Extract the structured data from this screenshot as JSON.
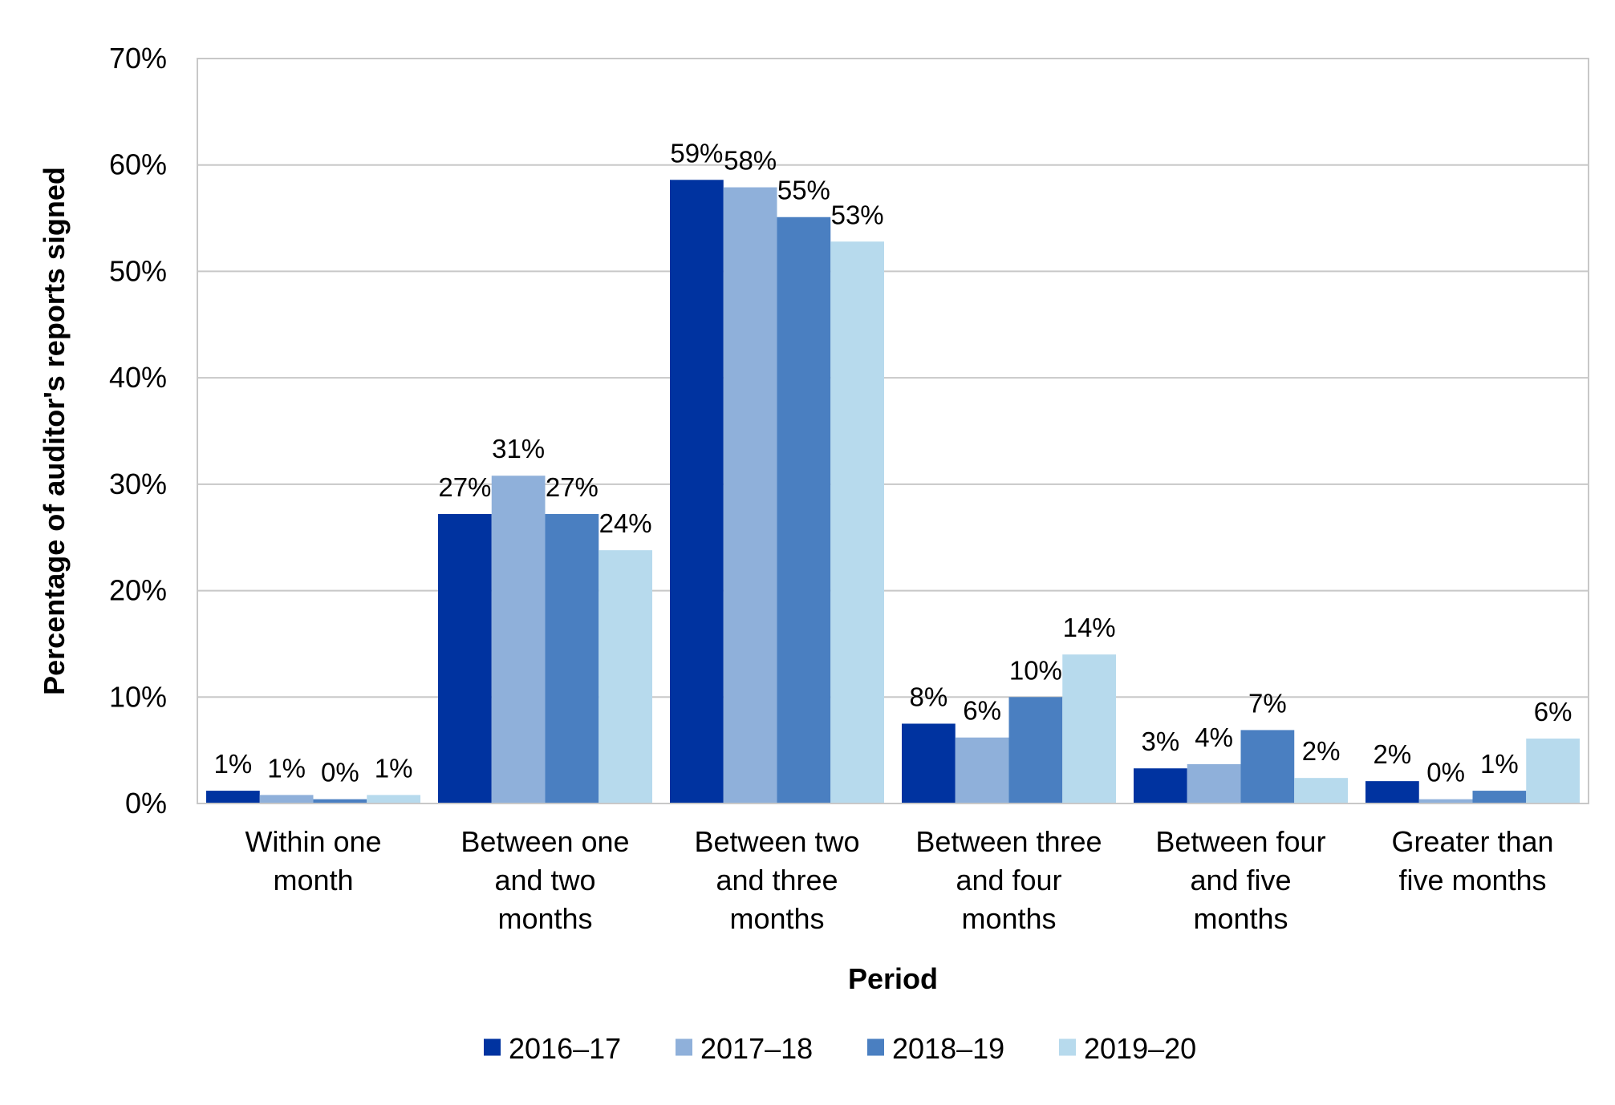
{
  "chart_data": {
    "type": "bar",
    "title": "",
    "xlabel": "Period",
    "ylabel": "Percentage of auditor's reports signed",
    "ylim": [
      0,
      0.7
    ],
    "yticks": [
      0,
      0.1,
      0.2,
      0.3,
      0.4,
      0.5,
      0.6,
      0.7
    ],
    "ytick_labels": [
      "0%",
      "10%",
      "20%",
      "30%",
      "40%",
      "50%",
      "60%",
      "70%"
    ],
    "grid": true,
    "legend_position": "bottom",
    "categories": [
      [
        "Within one",
        "month"
      ],
      [
        "Between one",
        "and two",
        "months"
      ],
      [
        "Between two",
        "and three",
        "months"
      ],
      [
        "Between three",
        "and four",
        "months"
      ],
      [
        "Between four",
        "and five",
        "months"
      ],
      [
        "Greater than",
        "five months"
      ]
    ],
    "series": [
      {
        "name": "2016–17",
        "color": "#0033A0",
        "values": [
          0.012,
          0.272,
          0.586,
          0.075,
          0.033,
          0.021
        ],
        "labels": [
          "1%",
          "27%",
          "59%",
          "8%",
          "3%",
          "2%"
        ]
      },
      {
        "name": "2017–18",
        "color": "#8FB0DA",
        "values": [
          0.008,
          0.308,
          0.579,
          0.062,
          0.037,
          0.004
        ],
        "labels": [
          "1%",
          "31%",
          "58%",
          "6%",
          "4%",
          "0%"
        ]
      },
      {
        "name": "2018–19",
        "color": "#4A7FC1",
        "values": [
          0.004,
          0.272,
          0.551,
          0.1,
          0.069,
          0.012
        ],
        "labels": [
          "0%",
          "27%",
          "55%",
          "10%",
          "7%",
          "1%"
        ]
      },
      {
        "name": "2019–20",
        "color": "#B7DAED",
        "values": [
          0.008,
          0.238,
          0.528,
          0.14,
          0.024,
          0.061
        ],
        "labels": [
          "1%",
          "24%",
          "53%",
          "14%",
          "2%",
          "6%"
        ]
      }
    ]
  }
}
